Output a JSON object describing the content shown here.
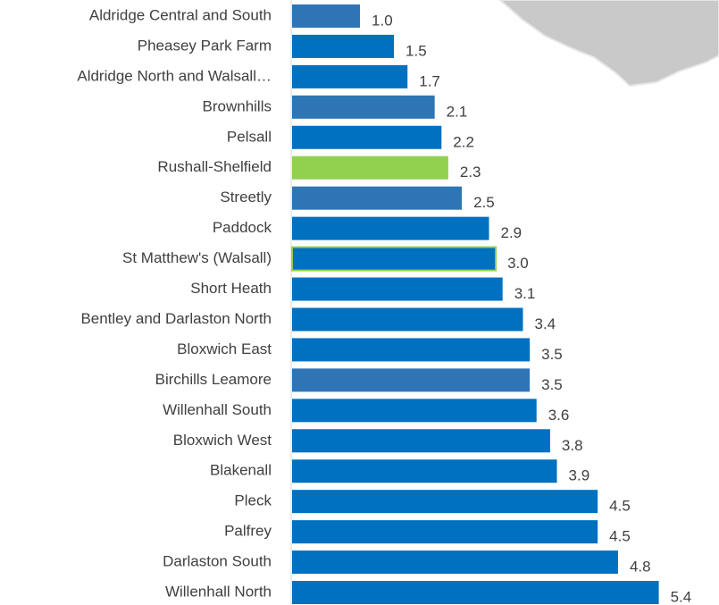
{
  "chart_data": {
    "type": "barh",
    "categories": [
      "Aldridge Central and South",
      "Pheasey Park Farm",
      "Aldridge North and Walsall…",
      "Brownhills",
      "Pelsall",
      "Rushall-Shelfield",
      "Streetly",
      "Paddock",
      "St Matthew's (Walsall)",
      "Short Heath",
      "Bentley and Darlaston North",
      "Bloxwich East",
      "Birchills Leamore",
      "Willenhall South",
      "Bloxwich West",
      "Blakenall",
      "Pleck",
      "Palfrey",
      "Darlaston South",
      "Willenhall North"
    ],
    "values": [
      1.0,
      1.5,
      1.7,
      2.1,
      2.2,
      2.3,
      2.5,
      2.9,
      3.0,
      3.1,
      3.4,
      3.5,
      3.5,
      3.6,
      3.8,
      3.9,
      4.5,
      4.5,
      4.8,
      5.4
    ],
    "value_labels": [
      "1.0",
      "1.5",
      "1.7",
      "2.1",
      "2.2",
      "2.3",
      "2.5",
      "2.9",
      "3.0",
      "3.1",
      "3.4",
      "3.5",
      "3.5",
      "3.6",
      "3.8",
      "3.9",
      "4.5",
      "4.5",
      "4.8",
      "5.4"
    ],
    "colors": [
      "#2e75b6",
      "#0070c0",
      "#0070c0",
      "#2e75b6",
      "#0070c0",
      "#92d050",
      "#2e75b6",
      "#0070c0",
      "#0070c0",
      "#0070c0",
      "#0070c0",
      "#0070c0",
      "#2e75b6",
      "#0070c0",
      "#0070c0",
      "#0070c0",
      "#0070c0",
      "#0070c0",
      "#0070c0",
      "#0070c0"
    ],
    "edgecolors": [
      null,
      null,
      null,
      null,
      null,
      null,
      null,
      null,
      "#92d050",
      null,
      null,
      null,
      null,
      null,
      null,
      null,
      null,
      null,
      null,
      null
    ],
    "xlim": [
      0,
      6.3
    ]
  }
}
